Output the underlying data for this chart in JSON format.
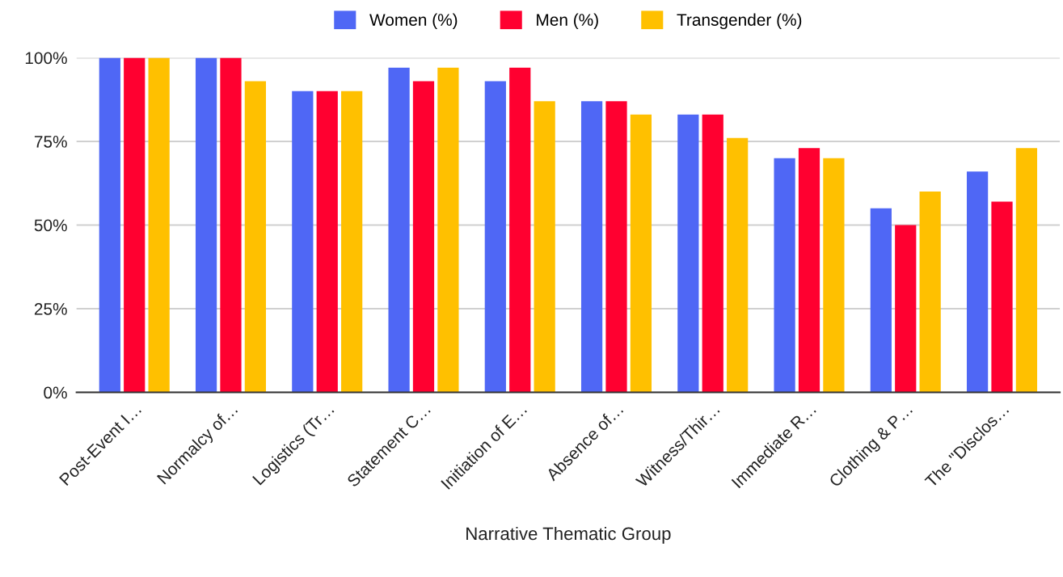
{
  "chart_data": {
    "type": "bar",
    "xlabel": "Narrative Thematic Group",
    "categories": [
      "Post-Event I…",
      "Normalcy of…",
      "Logistics (Tr…",
      "Statement C…",
      "Initiation of E…",
      "Absence of…",
      "Witness/Thir…",
      "Immediate R…",
      "Clothing & P…",
      "The \"Disclos…"
    ],
    "series": [
      {
        "name": "Women (%)",
        "color": "#4f67f5",
        "values": [
          100,
          100,
          90,
          97,
          93,
          87,
          83,
          70,
          55,
          66
        ]
      },
      {
        "name": "Men (%)",
        "color": "#ff0030",
        "values": [
          100,
          100,
          90,
          93,
          97,
          87,
          83,
          73,
          50,
          57
        ]
      },
      {
        "name": "Transgender (%)",
        "color": "#ffc000",
        "values": [
          100,
          93,
          90,
          97,
          87,
          83,
          76,
          70,
          60,
          73
        ]
      }
    ],
    "ylim": [
      0,
      100
    ],
    "yticks": [
      {
        "value": 0,
        "label": "0%"
      },
      {
        "value": 25,
        "label": "25%"
      },
      {
        "value": 50,
        "label": "50%"
      },
      {
        "value": 75,
        "label": "75%"
      },
      {
        "value": 100,
        "label": "100%"
      }
    ],
    "grid": "y",
    "legend": "top"
  }
}
